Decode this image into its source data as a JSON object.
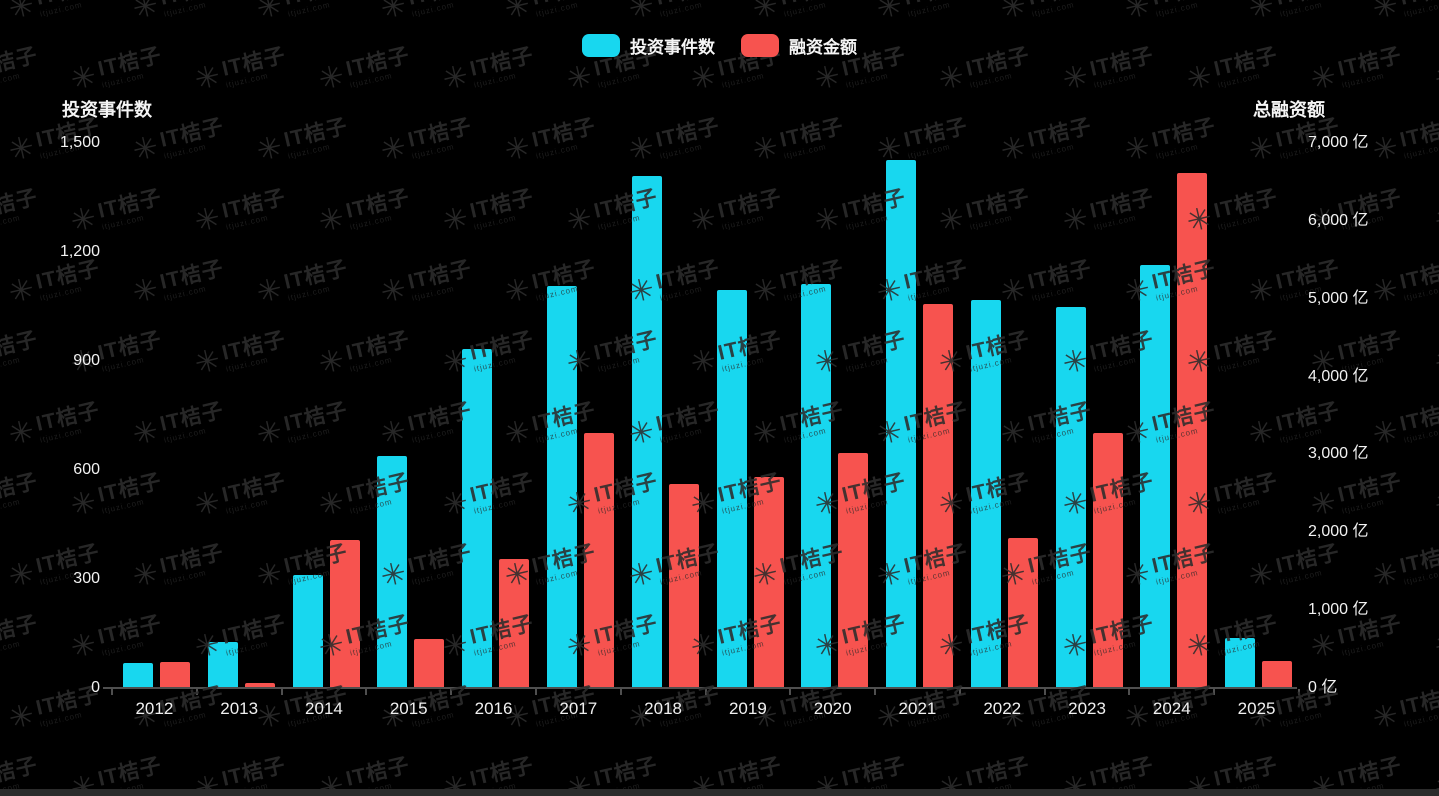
{
  "legend": {
    "items": [
      {
        "label": "投资事件数",
        "color": "#18d7ef"
      },
      {
        "label": "融资金额",
        "color": "#f7534f"
      }
    ]
  },
  "left_axis": {
    "title": "投资事件数",
    "ticks": [
      "1,500",
      "1,200",
      "900",
      "600",
      "300",
      "0"
    ]
  },
  "right_axis": {
    "title": "总融资额",
    "ticks": [
      "7,000 亿",
      "6,000 亿",
      "5,000 亿",
      "4,000 亿",
      "3,000 亿",
      "2,000 亿",
      "1,000 亿",
      "0 亿"
    ]
  },
  "watermark": {
    "logo": "flower-icon",
    "text": "IT桔子",
    "subtext": "itjuzi.com",
    "glyph": "✳"
  },
  "chart_data": {
    "type": "bar",
    "categories": [
      "2012",
      "2013",
      "2014",
      "2015",
      "2016",
      "2017",
      "2018",
      "2019",
      "2020",
      "2021",
      "2022",
      "2023",
      "2024",
      "2025"
    ],
    "series": [
      {
        "name": "投资事件数",
        "axis": "left",
        "color": "#18d7ef",
        "values": [
          70,
          128,
          310,
          638,
          932,
          1106,
          1410,
          1095,
          1111,
          1453,
          1067,
          1048,
          1163,
          138
        ]
      },
      {
        "name": "融资金额",
        "axis": "right",
        "color": "#f7534f",
        "values": [
          335,
          65,
          1905,
          630,
          1660,
          3270,
          2625,
          2715,
          3020,
          4930,
          1930,
          3270,
          6620,
          350
        ]
      }
    ],
    "left_ylabel": "投资事件数",
    "right_ylabel": "总融资额",
    "left_ylim": [
      0,
      1500
    ],
    "right_ylim": [
      0,
      7000
    ],
    "grid": false,
    "legend_position": "top-center",
    "background": "#000000"
  }
}
